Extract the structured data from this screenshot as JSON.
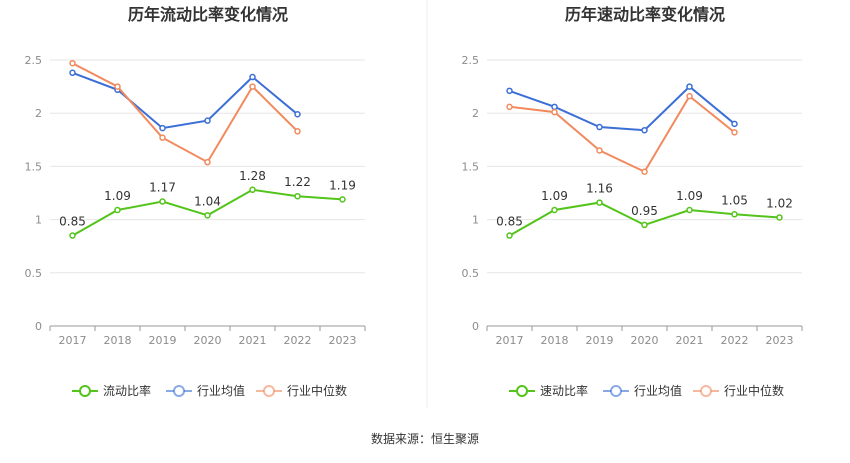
{
  "source": "数据来源：恒生聚源",
  "colors": {
    "green": "#52c41a",
    "blue": "#3b6fd6",
    "orange": "#f28a5e",
    "grid": "#e6e6e6",
    "axis": "#999999"
  },
  "chart_data": [
    {
      "type": "line",
      "title": "历年流动比率变化情况",
      "categories": [
        "2017",
        "2018",
        "2019",
        "2020",
        "2021",
        "2022",
        "2023"
      ],
      "ylim": [
        0,
        2.5
      ],
      "yticks": [
        "0",
        "0.5",
        "1",
        "1.5",
        "2",
        "2.5"
      ],
      "legend": "bottom",
      "series": [
        {
          "name": "流动比率",
          "color": "#52c41a",
          "values": [
            0.85,
            1.09,
            1.17,
            1.04,
            1.28,
            1.22,
            1.19
          ],
          "labels": [
            "0.85",
            "1.09",
            "1.17",
            "1.04",
            "1.28",
            "1.22",
            "1.19"
          ],
          "icon": "legend-line-icon"
        },
        {
          "name": "行业均值",
          "color": "#3b6fd6",
          "values": [
            2.38,
            2.22,
            1.86,
            1.93,
            2.34,
            1.99,
            null
          ],
          "icon": "legend-line-icon"
        },
        {
          "name": "行业中位数",
          "color": "#f28a5e",
          "values": [
            2.47,
            2.25,
            1.77,
            1.54,
            2.25,
            1.83,
            null
          ],
          "icon": "legend-line-icon"
        }
      ]
    },
    {
      "type": "line",
      "title": "历年速动比率变化情况",
      "categories": [
        "2017",
        "2018",
        "2019",
        "2020",
        "2021",
        "2022",
        "2023"
      ],
      "ylim": [
        0,
        2.5
      ],
      "yticks": [
        "0",
        "0.5",
        "1",
        "1.5",
        "2",
        "2.5"
      ],
      "legend": "bottom",
      "series": [
        {
          "name": "速动比率",
          "color": "#52c41a",
          "values": [
            0.85,
            1.09,
            1.16,
            0.95,
            1.09,
            1.05,
            1.02
          ],
          "labels": [
            "0.85",
            "1.09",
            "1.16",
            "0.95",
            "1.09",
            "1.05",
            "1.02"
          ],
          "icon": "legend-line-icon"
        },
        {
          "name": "行业均值",
          "color": "#3b6fd6",
          "values": [
            2.21,
            2.06,
            1.87,
            1.84,
            2.25,
            1.9,
            null
          ],
          "icon": "legend-line-icon"
        },
        {
          "name": "行业中位数",
          "color": "#f28a5e",
          "values": [
            2.06,
            2.01,
            1.65,
            1.45,
            2.16,
            1.82,
            null
          ],
          "icon": "legend-line-icon"
        }
      ]
    }
  ]
}
